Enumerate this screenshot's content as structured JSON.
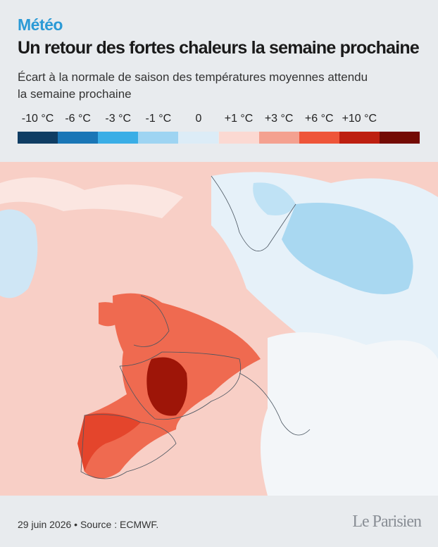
{
  "header": {
    "kicker": "Météo",
    "title": "Un retour des fortes chaleurs la semaine prochaine",
    "subtitle": "Écart à la normale de saison des températures moyennes attendu la semaine prochaine"
  },
  "legend": [
    {
      "label": "-10 °C",
      "color": "#0f3d63"
    },
    {
      "label": "-6 °C",
      "color": "#1a76b6"
    },
    {
      "label": "-3 °C",
      "color": "#3aaee6"
    },
    {
      "label": "-1 °C",
      "color": "#9ed4f2"
    },
    {
      "label": "0",
      "color": "#dcecf7"
    },
    {
      "label": "+1 °C",
      "color": "#fbd9d2"
    },
    {
      "label": "+3 °C",
      "color": "#f4a190"
    },
    {
      "label": "+6 °C",
      "color": "#ee5539"
    },
    {
      "label": "+10 °C",
      "color": "#bd1f10"
    },
    {
      "label": "",
      "color": "#730b04"
    }
  ],
  "footer": {
    "source": "29 juin 2026 • Source : ECMWF.",
    "logo": "Le Parisien"
  }
}
